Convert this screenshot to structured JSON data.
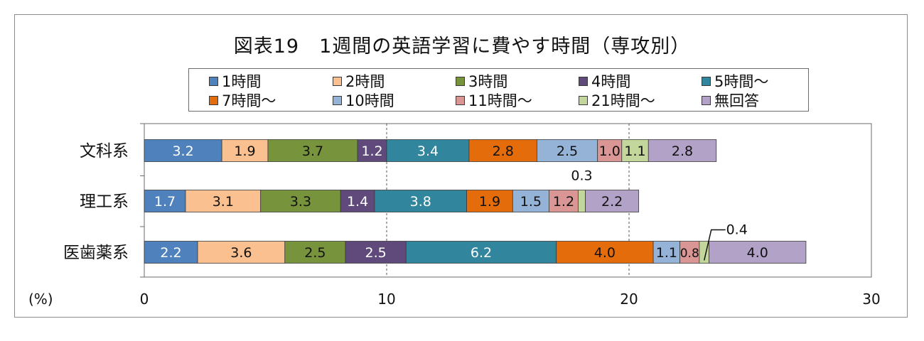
{
  "chart_data": {
    "type": "bar",
    "orientation": "horizontal",
    "stacked": true,
    "title": "図表19　1週間の英語学習に費やす時間（専攻別）",
    "categories": [
      "文科系",
      "理工系",
      "医歯薬系"
    ],
    "xlabel": "(%)",
    "xlim": [
      0,
      30
    ],
    "xticks": [
      "0",
      "10",
      "20",
      "30"
    ],
    "grid": "vertical dashed at 10 and 20",
    "legend_position": "top",
    "series": [
      {
        "name": "1時間",
        "color": "#4f81bd",
        "values": [
          3.2,
          1.7,
          2.2
        ]
      },
      {
        "name": "2時間",
        "color": "#fac090",
        "values": [
          1.9,
          3.1,
          3.6
        ]
      },
      {
        "name": "3時間",
        "color": "#77933c",
        "values": [
          3.7,
          3.3,
          2.5
        ]
      },
      {
        "name": "4時間",
        "color": "#604a7b",
        "values": [
          1.2,
          1.4,
          2.5
        ]
      },
      {
        "name": "5時間～",
        "color": "#31859c",
        "values": [
          3.4,
          3.8,
          6.2
        ]
      },
      {
        "name": "7時間～",
        "color": "#e46c0a",
        "values": [
          2.8,
          1.9,
          4.0
        ]
      },
      {
        "name": "10時間",
        "color": "#95b3d7",
        "values": [
          2.5,
          1.5,
          1.1
        ]
      },
      {
        "name": "11時間～",
        "color": "#d99694",
        "values": [
          1.0,
          1.2,
          0.8
        ]
      },
      {
        "name": "21時間～",
        "color": "#c3d69b",
        "values": [
          1.1,
          0.3,
          0.4
        ]
      },
      {
        "name": "無回答",
        "color": "#b3a2c7",
        "values": [
          2.8,
          2.2,
          4.0
        ]
      }
    ],
    "data_labels": [
      [
        "3.2",
        "1.9",
        "3.7",
        "1.2",
        "3.4",
        "2.8",
        "2.5",
        "1.0",
        "1.1",
        "2.8"
      ],
      [
        "1.7",
        "3.1",
        "3.3",
        "1.4",
        "3.8",
        "1.9",
        "1.5",
        "1.2",
        "0.3",
        "2.2"
      ],
      [
        "2.2",
        "3.6",
        "2.5",
        "2.5",
        "6.2",
        "4.0",
        "1.1",
        "0.8",
        "0.4",
        "4.0"
      ]
    ],
    "label_text_color": {
      "1時間": "#ffffff",
      "4時間": "#ffffff",
      "5時間～": "#ffffff"
    }
  }
}
